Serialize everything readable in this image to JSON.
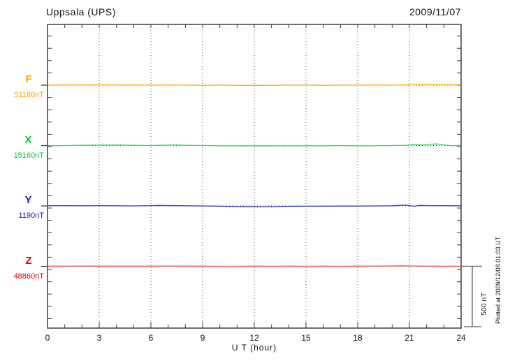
{
  "header": {
    "title": "Uppsala (UPS)",
    "date": "2009/11/07"
  },
  "axis": {
    "xlabel": "U T (hour)",
    "ticks": [
      0,
      3,
      6,
      9,
      12,
      15,
      18,
      21,
      24
    ],
    "x_min": 0,
    "x_max": 24,
    "minor_tick_step_hours": 1,
    "grid_step_hours": 3
  },
  "scale_bar": {
    "label": "500 nT",
    "nt": 500
  },
  "footer": {
    "plotted_at": "Plotted at 2009/12/08 01:03 UT"
  },
  "chart_data": {
    "type": "line",
    "title": "Uppsala (UPS) magnetogram 2009/11/07",
    "xlabel": "U T (hour)",
    "x_range": [
      0,
      24
    ],
    "grid": "vertical dotted lines every 3 hours; dotted horizontal baseline per component",
    "legend_position": "left margin, one label per stacked trace",
    "scale_note": "right-hand bar spans 500 nT",
    "y_tick_interval_nt": 100,
    "series": [
      {
        "name": "F",
        "baseline_label": "51180nT",
        "baseline_nt": 51180,
        "label_color": "#FFA500",
        "trace_color": "#FFB000",
        "points_ut_nt": [
          [
            0,
            0
          ],
          [
            1,
            1
          ],
          [
            2,
            2
          ],
          [
            3,
            2
          ],
          [
            4,
            2
          ],
          [
            5,
            1
          ],
          [
            6,
            0
          ],
          [
            7,
            1
          ],
          [
            8,
            0
          ],
          [
            9,
            -1
          ],
          [
            10,
            0
          ],
          [
            11,
            -1
          ],
          [
            12,
            -2
          ],
          [
            13,
            -1
          ],
          [
            14,
            0
          ],
          [
            15,
            0
          ],
          [
            16,
            -1
          ],
          [
            17,
            0
          ],
          [
            18,
            0
          ],
          [
            19,
            1
          ],
          [
            20,
            0
          ],
          [
            21,
            3
          ],
          [
            21.5,
            5
          ],
          [
            22,
            4
          ],
          [
            22.5,
            5
          ],
          [
            23,
            3
          ],
          [
            23.5,
            4
          ],
          [
            24,
            2
          ]
        ]
      },
      {
        "name": "X",
        "baseline_label": "15160nT",
        "baseline_nt": 15160,
        "label_color": "#00CC33",
        "trace_color": "#22DD55",
        "points_ut_nt": [
          [
            0,
            0
          ],
          [
            0.5,
            -2
          ],
          [
            1,
            0
          ],
          [
            2,
            3
          ],
          [
            3,
            4
          ],
          [
            4,
            4
          ],
          [
            5,
            3
          ],
          [
            6,
            0
          ],
          [
            7,
            4
          ],
          [
            7.5,
            5
          ],
          [
            8,
            2
          ],
          [
            9,
            0
          ],
          [
            10,
            -2
          ],
          [
            11,
            -2
          ],
          [
            12,
            -3
          ],
          [
            13,
            -2
          ],
          [
            14,
            -2
          ],
          [
            15,
            -2
          ],
          [
            16,
            -2
          ],
          [
            17,
            -1
          ],
          [
            18,
            -2
          ],
          [
            19,
            -2
          ],
          [
            20,
            0
          ],
          [
            20.8,
            2
          ],
          [
            21.2,
            8
          ],
          [
            21.6,
            6
          ],
          [
            22,
            5
          ],
          [
            22.3,
            12
          ],
          [
            22.6,
            13
          ],
          [
            22.9,
            8
          ],
          [
            23.2,
            2
          ],
          [
            23.5,
            -2
          ],
          [
            23.8,
            0
          ],
          [
            24,
            2
          ]
        ]
      },
      {
        "name": "Y",
        "baseline_label": "1190nT",
        "baseline_nt": 1190,
        "label_color": "#1515CC",
        "trace_color": "#3333CC",
        "points_ut_nt": [
          [
            0,
            2
          ],
          [
            1,
            2
          ],
          [
            2,
            1
          ],
          [
            3,
            2
          ],
          [
            4,
            1
          ],
          [
            5,
            0
          ],
          [
            6,
            2
          ],
          [
            6.5,
            4
          ],
          [
            7,
            3
          ],
          [
            8,
            1
          ],
          [
            9,
            0
          ],
          [
            10,
            -2
          ],
          [
            11,
            -5
          ],
          [
            11.5,
            -7
          ],
          [
            12,
            -7
          ],
          [
            12.5,
            -8
          ],
          [
            13,
            -6
          ],
          [
            13.5,
            -5
          ],
          [
            14,
            -3
          ],
          [
            15,
            -2
          ],
          [
            16,
            -2
          ],
          [
            17,
            -1
          ],
          [
            18,
            -1
          ],
          [
            19,
            0
          ],
          [
            20,
            1
          ],
          [
            20.4,
            4
          ],
          [
            20.7,
            6
          ],
          [
            21,
            2
          ],
          [
            21.3,
            -2
          ],
          [
            21.6,
            4
          ],
          [
            22,
            3
          ],
          [
            22.5,
            2
          ],
          [
            23,
            2
          ],
          [
            23.5,
            1
          ],
          [
            24,
            1
          ]
        ]
      },
      {
        "name": "Z",
        "baseline_label": "48860nT",
        "baseline_nt": 48860,
        "label_color": "#E00000",
        "trace_color": "#F05555",
        "points_ut_nt": [
          [
            0,
            1
          ],
          [
            1,
            1
          ],
          [
            2,
            2
          ],
          [
            3,
            1
          ],
          [
            4,
            1
          ],
          [
            5,
            1
          ],
          [
            6,
            1
          ],
          [
            7,
            2
          ],
          [
            8,
            1
          ],
          [
            9,
            1
          ],
          [
            10,
            0
          ],
          [
            11,
            0
          ],
          [
            12,
            1
          ],
          [
            13,
            0
          ],
          [
            14,
            1
          ],
          [
            15,
            0
          ],
          [
            16,
            1
          ],
          [
            17,
            0
          ],
          [
            18,
            1
          ],
          [
            19,
            2
          ],
          [
            20,
            3
          ],
          [
            20.5,
            4
          ],
          [
            21,
            3
          ],
          [
            21.5,
            2
          ],
          [
            22,
            1
          ],
          [
            22.5,
            1
          ],
          [
            23,
            0
          ],
          [
            23.5,
            1
          ],
          [
            24,
            0
          ]
        ]
      }
    ]
  }
}
